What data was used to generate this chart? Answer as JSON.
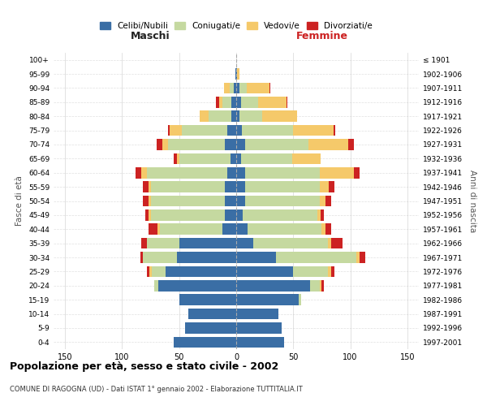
{
  "age_groups": [
    "0-4",
    "5-9",
    "10-14",
    "15-19",
    "20-24",
    "25-29",
    "30-34",
    "35-39",
    "40-44",
    "45-49",
    "50-54",
    "55-59",
    "60-64",
    "65-69",
    "70-74",
    "75-79",
    "80-84",
    "85-89",
    "90-94",
    "95-99",
    "100+"
  ],
  "birth_years": [
    "1997-2001",
    "1992-1996",
    "1987-1991",
    "1982-1986",
    "1977-1981",
    "1972-1976",
    "1967-1971",
    "1962-1966",
    "1957-1961",
    "1952-1956",
    "1947-1951",
    "1942-1946",
    "1937-1941",
    "1932-1936",
    "1927-1931",
    "1922-1926",
    "1917-1921",
    "1912-1916",
    "1907-1911",
    "1902-1906",
    "≤ 1901"
  ],
  "males": {
    "celibi": [
      55,
      45,
      42,
      50,
      68,
      62,
      52,
      50,
      12,
      10,
      10,
      10,
      8,
      5,
      10,
      8,
      4,
      4,
      2,
      1,
      0
    ],
    "coniugati": [
      0,
      0,
      0,
      0,
      4,
      12,
      30,
      28,
      55,
      65,
      65,
      65,
      70,
      45,
      50,
      40,
      20,
      8,
      4,
      0,
      0
    ],
    "vedovi": [
      0,
      0,
      0,
      0,
      0,
      2,
      0,
      0,
      2,
      2,
      2,
      2,
      5,
      2,
      5,
      10,
      8,
      3,
      5,
      0,
      0
    ],
    "divorziati": [
      0,
      0,
      0,
      0,
      0,
      2,
      2,
      5,
      8,
      3,
      5,
      5,
      5,
      3,
      5,
      2,
      0,
      3,
      0,
      0,
      0
    ]
  },
  "females": {
    "nubili": [
      42,
      40,
      37,
      55,
      65,
      50,
      35,
      15,
      10,
      6,
      8,
      8,
      8,
      4,
      8,
      5,
      3,
      4,
      3,
      1,
      0
    ],
    "coniugate": [
      0,
      0,
      0,
      2,
      8,
      30,
      70,
      65,
      65,
      65,
      65,
      65,
      65,
      45,
      55,
      45,
      20,
      15,
      6,
      0,
      0
    ],
    "vedove": [
      0,
      0,
      0,
      0,
      2,
      3,
      3,
      3,
      3,
      3,
      5,
      8,
      30,
      25,
      35,
      35,
      30,
      25,
      20,
      2,
      0
    ],
    "divorziate": [
      0,
      0,
      0,
      0,
      2,
      3,
      5,
      10,
      5,
      3,
      5,
      5,
      5,
      0,
      5,
      2,
      0,
      1,
      1,
      0,
      0
    ]
  },
  "colors": {
    "celibi": "#3a6ea5",
    "coniugati": "#c5d9a0",
    "vedovi": "#f5c96a",
    "divorziati": "#cc2222"
  },
  "title": "Popolazione per età, sesso e stato civile - 2002",
  "subtitle": "COMUNE DI RAGOGNA (UD) - Dati ISTAT 1° gennaio 2002 - Elaborazione TUTTITALIA.IT",
  "xlabel_left": "Maschi",
  "xlabel_right": "Femmine",
  "ylabel_left": "Fasce di età",
  "ylabel_right": "Anni di nascita",
  "xlim": 160,
  "background_color": "#ffffff",
  "grid_color": "#cccccc"
}
